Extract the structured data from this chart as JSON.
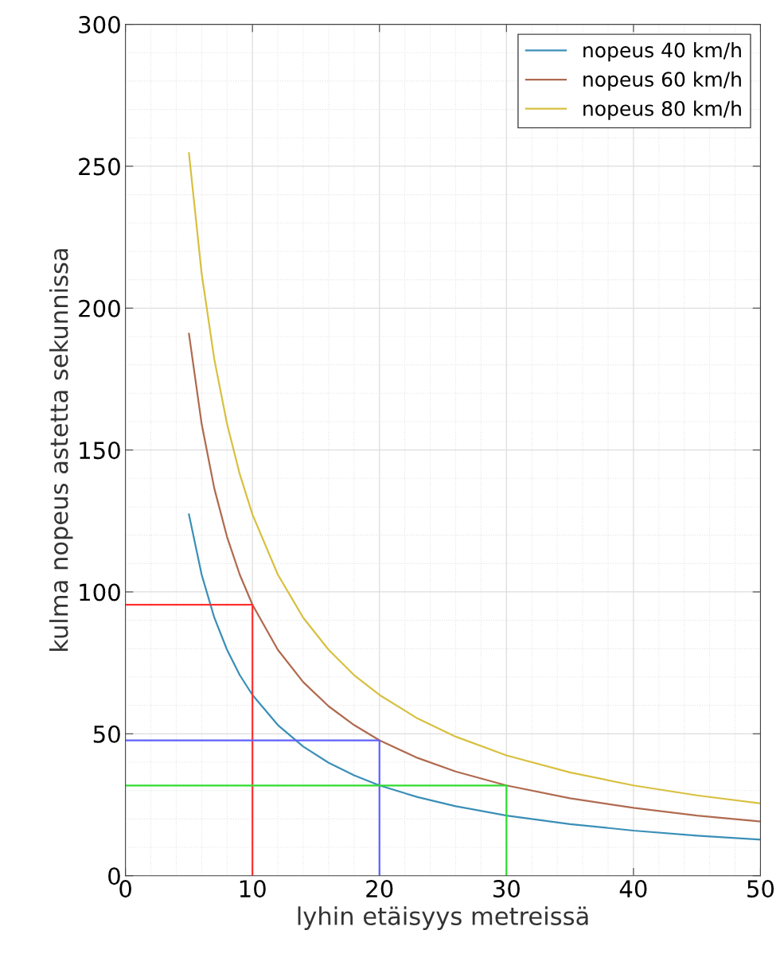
{
  "chart_data": {
    "type": "line",
    "xlabel": "lyhin etäisyys metreissä",
    "ylabel": "kulma nopeus astetta sekunnissa",
    "x": [
      5,
      6,
      7,
      8,
      9,
      10,
      12,
      14,
      16,
      18,
      20,
      23,
      26,
      30,
      35,
      40,
      45,
      50
    ],
    "series": [
      {
        "name": "nopeus 40 km/h",
        "color": "#3a8fb7",
        "values": [
          127.3,
          106.1,
          90.9,
          79.6,
          70.7,
          63.7,
          53.1,
          45.5,
          39.8,
          35.4,
          31.8,
          27.7,
          24.5,
          21.2,
          18.2,
          15.9,
          14.1,
          12.7
        ]
      },
      {
        "name": "nopeus 60 km/h",
        "color": "#b06a50",
        "values": [
          191.0,
          159.2,
          136.4,
          119.4,
          106.1,
          95.5,
          79.6,
          68.2,
          59.7,
          53.1,
          47.7,
          41.5,
          36.7,
          31.8,
          27.3,
          23.9,
          21.2,
          19.1
        ]
      },
      {
        "name": "nopeus 80 km/h",
        "color": "#d8c040",
        "values": [
          254.6,
          212.2,
          181.9,
          159.2,
          141.5,
          127.3,
          106.1,
          90.9,
          79.6,
          70.7,
          63.7,
          55.4,
          49.0,
          42.4,
          36.4,
          31.8,
          28.3,
          25.5
        ]
      },
      {
        "color": "#ff3030",
        "x": [
          0,
          10,
          10
        ],
        "values": [
          95.5,
          95.5,
          0
        ]
      },
      {
        "color": "#6060ff",
        "x": [
          0,
          20,
          20
        ],
        "values": [
          47.7,
          47.7,
          0
        ]
      },
      {
        "color": "#30dd30",
        "x": [
          0,
          30,
          30
        ],
        "values": [
          31.8,
          31.8,
          0
        ]
      }
    ],
    "xlim": [
      0,
      50
    ],
    "xticks": [
      0,
      10,
      20,
      30,
      40,
      50
    ],
    "ylim": [
      0,
      300
    ],
    "yticks": [
      0,
      50,
      100,
      150,
      200,
      250,
      300
    ],
    "grid": true,
    "legend": "top right",
    "marker": "none",
    "line_style": "solid"
  }
}
